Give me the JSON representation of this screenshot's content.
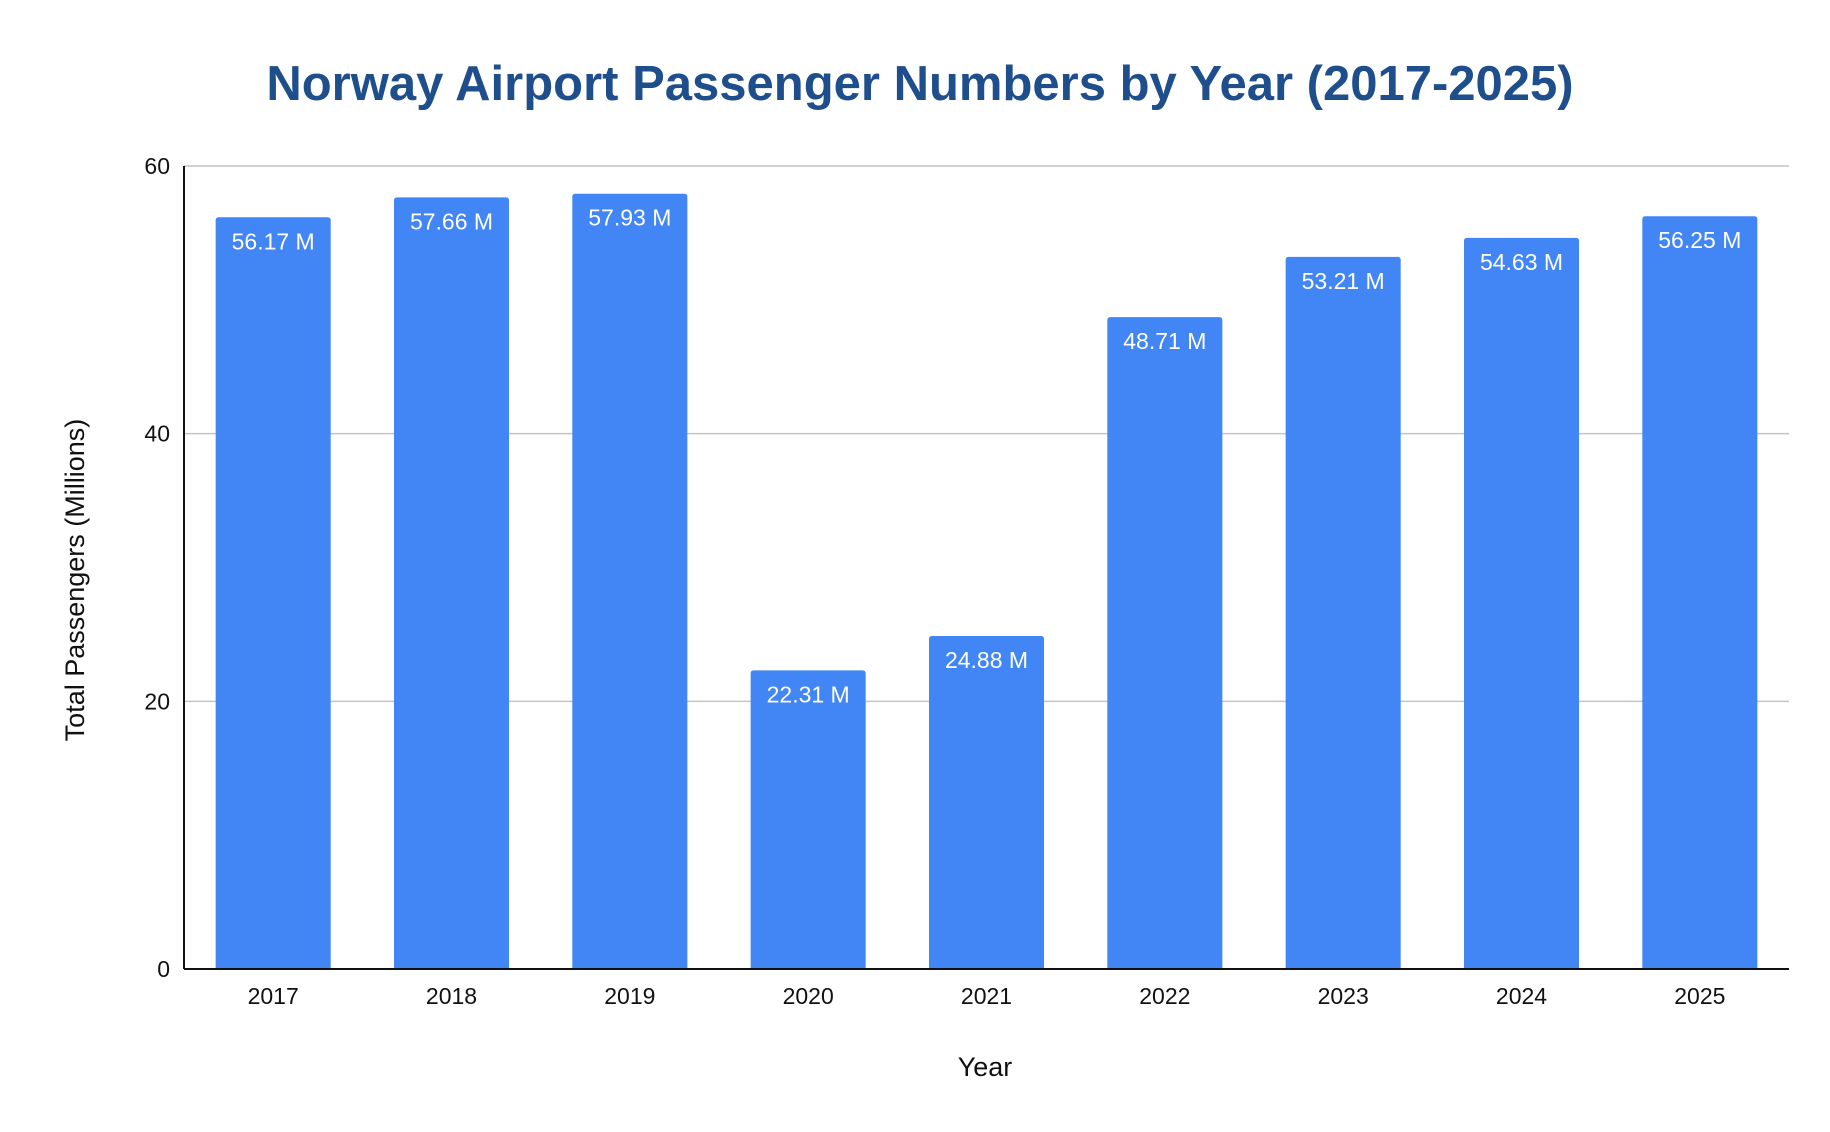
{
  "chart_data": {
    "type": "bar",
    "title": "Norway Airport Passenger Numbers by Year (2017-2025)",
    "xlabel": "Year",
    "ylabel": "Total Passengers (Millions)",
    "categories": [
      "2017",
      "2018",
      "2019",
      "2020",
      "2021",
      "2022",
      "2023",
      "2024",
      "2025"
    ],
    "values": [
      56.17,
      57.66,
      57.93,
      22.31,
      24.88,
      48.71,
      53.21,
      54.63,
      56.25
    ],
    "data_labels": [
      "56.17 M",
      "57.66 M",
      "57.93 M",
      "22.31 M",
      "24.88 M",
      "48.71 M",
      "53.21 M",
      "54.63 M",
      "56.25 M"
    ],
    "ylim": [
      0,
      60
    ],
    "yticks": [
      0,
      20,
      40,
      60
    ],
    "grid": true,
    "legend": "none",
    "bar_color": "#4285f4",
    "title_color": "#1f4e8c"
  }
}
